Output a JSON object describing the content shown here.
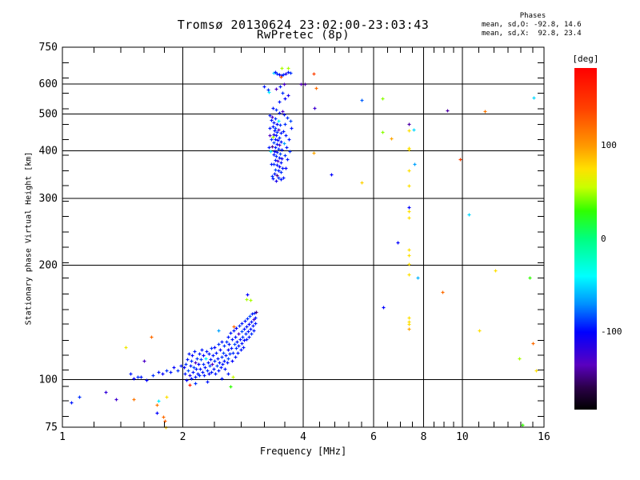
{
  "header": {
    "title": "Tromsø 20130624 23:02:00-23:03:43",
    "subtitle": "RwPretec (8p)",
    "phases": {
      "title": "Phases",
      "line_o": "mean, sd,O: -92.8, 14.6",
      "line_x": "mean, sd,X:  92.8, 23.4"
    }
  },
  "chart_data": {
    "type": "scatter",
    "title": "Tromsø 20130624 23:02:00-23:03:43",
    "subtitle": "RwPretec (8p)",
    "xlabel": "Frequency [MHz]",
    "ylabel": "Stationary phase Virtual Height [km]",
    "grid": true,
    "x_axis": {
      "scale": "log",
      "range": [
        1,
        16
      ],
      "major_ticks": [
        1,
        2,
        4,
        6,
        8,
        10,
        16
      ],
      "tick_labels": [
        "1",
        "2",
        "4",
        "6",
        "8",
        "10",
        "16"
      ],
      "grid_at": [
        2,
        4,
        6,
        8,
        10
      ],
      "minor_ticks": [
        1.2,
        1.4,
        1.6,
        1.8,
        2.4,
        2.8,
        3.2,
        3.6,
        4.4,
        4.8,
        5.2,
        5.6,
        6.5,
        7,
        7.5,
        8.5,
        9,
        9.5,
        11,
        12,
        13,
        14,
        15
      ]
    },
    "y_axis": {
      "scale": "log",
      "range": [
        75,
        750
      ],
      "major_ticks": [
        75,
        100,
        200,
        300,
        400,
        500,
        600,
        750
      ],
      "tick_labels": [
        "75",
        "100",
        "200",
        "300",
        "400",
        "500",
        "600",
        "750"
      ],
      "grid_at": [
        100,
        200,
        300,
        400,
        500,
        600
      ],
      "minor_ticks": [
        683,
        622,
        567,
        516,
        470,
        428,
        390,
        355,
        324,
        295,
        269,
        245,
        223,
        203,
        185,
        168,
        153,
        140,
        127,
        116,
        106,
        96,
        88,
        80
      ]
    },
    "colorbar": {
      "title": "[deg]",
      "units": "deg",
      "range": [
        -183,
        183
      ],
      "tick_values": [
        100,
        0,
        -100
      ],
      "tick_labels": [
        "100",
        "0",
        "-100"
      ],
      "stops": [
        [
          183,
          "#ff0000"
        ],
        [
          140,
          "#ff4000"
        ],
        [
          100,
          "#ff9800"
        ],
        [
          75,
          "#ffe000"
        ],
        [
          55,
          "#c8ff00"
        ],
        [
          30,
          "#30ff00"
        ],
        [
          0,
          "#00ff80"
        ],
        [
          -40,
          "#00ffff"
        ],
        [
          -70,
          "#0090ff"
        ],
        [
          -100,
          "#0000ff"
        ],
        [
          -135,
          "#5a00c0"
        ],
        [
          -160,
          "#2a0046"
        ],
        [
          -183,
          "#000000"
        ]
      ]
    },
    "series_label": "echoes [frequency MHz, virtual height km, phase deg]",
    "points": [
      [
        1.05,
        87,
        -95
      ],
      [
        1.1,
        90,
        -90
      ],
      [
        1.28,
        93,
        -120
      ],
      [
        1.36,
        89,
        -125
      ],
      [
        1.44,
        122,
        70
      ],
      [
        1.51,
        89,
        115
      ],
      [
        1.6,
        112,
        -130
      ],
      [
        1.67,
        130,
        120
      ],
      [
        1.72,
        86,
        115
      ],
      [
        1.72,
        82,
        -100
      ],
      [
        1.74,
        88,
        -45
      ],
      [
        1.79,
        80,
        120
      ],
      [
        1.8,
        78,
        125
      ],
      [
        1.81,
        75,
        80
      ],
      [
        1.82,
        90,
        75
      ],
      [
        1.48,
        104,
        -95
      ],
      [
        1.51,
        101,
        -100
      ],
      [
        1.54,
        102,
        -90
      ],
      [
        1.57,
        102,
        -95
      ],
      [
        1.62,
        100,
        -100
      ],
      [
        1.68,
        103,
        -90
      ],
      [
        1.74,
        105,
        -95
      ],
      [
        1.78,
        104,
        -100
      ],
      [
        1.82,
        106,
        -90
      ],
      [
        1.86,
        105,
        -95
      ],
      [
        1.9,
        108,
        -100
      ],
      [
        1.94,
        106,
        -90
      ],
      [
        1.98,
        109,
        -95
      ],
      [
        2.01,
        108,
        -100
      ],
      [
        2.02,
        104,
        -95
      ],
      [
        2.03,
        110,
        -90
      ],
      [
        2.04,
        100,
        -100
      ],
      [
        2.05,
        113,
        -95
      ],
      [
        2.06,
        106,
        -85
      ],
      [
        2.07,
        117,
        -95
      ],
      [
        2.08,
        103,
        -110
      ],
      [
        2.09,
        109,
        -95
      ],
      [
        2.1,
        112,
        -90
      ],
      [
        2.1,
        101,
        -95
      ],
      [
        2.11,
        116,
        -100
      ],
      [
        2.12,
        105,
        -95
      ],
      [
        2.13,
        108,
        -85
      ],
      [
        2.14,
        119,
        -95
      ],
      [
        2.15,
        102,
        -95
      ],
      [
        2.15,
        111,
        -130
      ],
      [
        2.16,
        107,
        -95
      ],
      [
        2.17,
        114,
        -90
      ],
      [
        2.18,
        104,
        -95
      ],
      [
        2.19,
        110,
        -100
      ],
      [
        2.2,
        117,
        -95
      ],
      [
        2.2,
        103,
        -90
      ],
      [
        2.21,
        107,
        -95
      ],
      [
        2.22,
        113,
        -85
      ],
      [
        2.23,
        120,
        -95
      ],
      [
        2.24,
        105,
        -95
      ],
      [
        2.25,
        110,
        -90
      ],
      [
        2.25,
        116,
        -100
      ],
      [
        2.26,
        103,
        -95
      ],
      [
        2.27,
        108,
        -95
      ],
      [
        2.28,
        114,
        -45
      ],
      [
        2.29,
        119,
        -95
      ],
      [
        2.3,
        106,
        -90
      ],
      [
        2.31,
        111,
        -95
      ],
      [
        2.32,
        104,
        -100
      ],
      [
        2.32,
        117,
        -95
      ],
      [
        2.33,
        109,
        -85
      ],
      [
        2.34,
        113,
        -95
      ],
      [
        2.35,
        121,
        -90
      ],
      [
        2.36,
        105,
        -95
      ],
      [
        2.37,
        110,
        -130
      ],
      [
        2.38,
        116,
        -95
      ],
      [
        2.39,
        107,
        -95
      ],
      [
        2.4,
        112,
        -90
      ],
      [
        2.4,
        122,
        -100
      ],
      [
        2.41,
        104,
        -95
      ],
      [
        2.42,
        118,
        -95
      ],
      [
        2.43,
        109,
        -85
      ],
      [
        2.44,
        114,
        -95
      ],
      [
        2.45,
        124,
        -90
      ],
      [
        2.46,
        106,
        -95
      ],
      [
        2.47,
        111,
        -95
      ],
      [
        2.48,
        120,
        -100
      ],
      [
        2.49,
        108,
        -95
      ],
      [
        2.5,
        115,
        -90
      ],
      [
        2.5,
        126,
        -95
      ],
      [
        2.51,
        110,
        -95
      ],
      [
        2.52,
        118,
        -85
      ],
      [
        2.53,
        112,
        -95
      ],
      [
        2.54,
        123,
        -90
      ],
      [
        2.55,
        107,
        -95
      ],
      [
        2.56,
        116,
        -95
      ],
      [
        2.57,
        126,
        -90
      ],
      [
        2.58,
        111,
        -95
      ],
      [
        2.59,
        120,
        -100
      ],
      [
        2.6,
        130,
        -95
      ],
      [
        2.6,
        114,
        -85
      ],
      [
        2.61,
        124,
        -95
      ],
      [
        2.62,
        117,
        -90
      ],
      [
        2.63,
        133,
        -95
      ],
      [
        2.64,
        121,
        -95
      ],
      [
        2.65,
        112,
        -100
      ],
      [
        2.66,
        128,
        -95
      ],
      [
        2.67,
        118,
        -90
      ],
      [
        2.68,
        135,
        -95
      ],
      [
        2.69,
        124,
        -85
      ],
      [
        2.7,
        115,
        -95
      ],
      [
        2.71,
        130,
        -95
      ],
      [
        2.72,
        121,
        -90
      ],
      [
        2.72,
        137,
        -100
      ],
      [
        2.73,
        126,
        -95
      ],
      [
        2.74,
        118,
        -95
      ],
      [
        2.75,
        132,
        -130
      ],
      [
        2.76,
        123,
        -95
      ],
      [
        2.77,
        139,
        -90
      ],
      [
        2.78,
        128,
        -95
      ],
      [
        2.79,
        120,
        -95
      ],
      [
        2.8,
        134,
        -85
      ],
      [
        2.8,
        125,
        -95
      ],
      [
        2.81,
        141,
        -95
      ],
      [
        2.82,
        130,
        -90
      ],
      [
        2.83,
        122,
        -95
      ],
      [
        2.84,
        136,
        -95
      ],
      [
        2.85,
        127,
        -100
      ],
      [
        2.86,
        143,
        -95
      ],
      [
        2.87,
        132,
        -90
      ],
      [
        2.88,
        138,
        -95
      ],
      [
        2.89,
        128,
        -95
      ],
      [
        2.9,
        145,
        -90
      ],
      [
        2.91,
        134,
        -95
      ],
      [
        2.92,
        140,
        -100
      ],
      [
        2.93,
        130,
        -95
      ],
      [
        2.94,
        147,
        -85
      ],
      [
        2.95,
        136,
        -95
      ],
      [
        2.96,
        142,
        -95
      ],
      [
        2.97,
        132,
        -90
      ],
      [
        2.98,
        149,
        -95
      ],
      [
        2.99,
        139,
        -95
      ],
      [
        3.0,
        144,
        -130
      ],
      [
        3.01,
        135,
        -95
      ],
      [
        3.02,
        150,
        -90
      ],
      [
        3.03,
        141,
        -95
      ],
      [
        3.04,
        146,
        -95
      ],
      [
        3.05,
        151,
        -145
      ],
      [
        2.68,
        138,
        120
      ],
      [
        2.08,
        97,
        165
      ],
      [
        2.63,
        96,
        30
      ],
      [
        2.67,
        102,
        55
      ],
      [
        2.88,
        163,
        50
      ],
      [
        2.95,
        162,
        50
      ],
      [
        2.9,
        168,
        -100
      ],
      [
        2.45,
        135,
        -65
      ],
      [
        2.3,
        99,
        -95
      ],
      [
        2.5,
        101,
        -95
      ],
      [
        2.15,
        98,
        -90
      ],
      [
        2.6,
        104,
        -95
      ],
      [
        3.37,
        642,
        -50
      ],
      [
        3.4,
        645,
        -95
      ],
      [
        3.44,
        639,
        -90
      ],
      [
        3.48,
        636,
        -100
      ],
      [
        3.53,
        633,
        -95
      ],
      [
        3.57,
        636,
        -90
      ],
      [
        3.62,
        639,
        -110
      ],
      [
        3.67,
        645,
        -95
      ],
      [
        3.71,
        642,
        -90
      ],
      [
        3.53,
        660,
        50
      ],
      [
        3.66,
        662,
        50
      ],
      [
        3.51,
        627,
        130
      ],
      [
        3.19,
        590,
        -95
      ],
      [
        3.26,
        581,
        -90
      ],
      [
        3.28,
        572,
        -45
      ],
      [
        3.42,
        584,
        -130
      ],
      [
        3.5,
        590,
        -95
      ],
      [
        3.55,
        570,
        -90
      ],
      [
        3.6,
        550,
        -100
      ],
      [
        3.48,
        540,
        -95
      ],
      [
        3.66,
        560,
        -110
      ],
      [
        3.58,
        600,
        -130
      ],
      [
        3.95,
        600,
        -135
      ],
      [
        4.04,
        600,
        -140
      ],
      [
        3.3,
        497,
        -95
      ],
      [
        3.35,
        492,
        -130
      ],
      [
        3.4,
        488,
        -90
      ],
      [
        3.33,
        483,
        -95
      ],
      [
        3.46,
        480,
        -45
      ],
      [
        3.38,
        476,
        -95
      ],
      [
        3.43,
        472,
        -100
      ],
      [
        3.5,
        468,
        -90
      ],
      [
        3.36,
        464,
        -95
      ],
      [
        3.41,
        460,
        -85
      ],
      [
        3.47,
        456,
        -130
      ],
      [
        3.39,
        452,
        -95
      ],
      [
        3.44,
        449,
        -90
      ],
      [
        3.52,
        446,
        -95
      ],
      [
        3.37,
        443,
        -110
      ],
      [
        3.42,
        440,
        -95
      ],
      [
        3.36,
        436,
        50
      ],
      [
        3.48,
        433,
        -90
      ],
      [
        3.4,
        430,
        -95
      ],
      [
        3.45,
        427,
        -100
      ],
      [
        3.51,
        424,
        -95
      ],
      [
        3.38,
        421,
        -85
      ],
      [
        3.43,
        418,
        -95
      ],
      [
        3.49,
        415,
        -130
      ],
      [
        3.35,
        412,
        -145
      ],
      [
        3.41,
        409,
        -95
      ],
      [
        3.46,
        406,
        -90
      ],
      [
        3.53,
        403,
        -95
      ],
      [
        3.39,
        400,
        -100
      ],
      [
        3.44,
        397,
        -95
      ],
      [
        3.5,
        394,
        -85
      ],
      [
        3.37,
        391,
        -95
      ],
      [
        3.42,
        388,
        -90
      ],
      [
        3.48,
        385,
        -95
      ],
      [
        3.54,
        382,
        -110
      ],
      [
        3.4,
        379,
        -95
      ],
      [
        3.45,
        376,
        -130
      ],
      [
        3.51,
        373,
        -95
      ],
      [
        3.38,
        370,
        -90
      ],
      [
        3.43,
        367,
        -95
      ],
      [
        3.49,
        364,
        -100
      ],
      [
        3.55,
        361,
        -95
      ],
      [
        3.41,
        358,
        -85
      ],
      [
        3.46,
        355,
        -95
      ],
      [
        3.52,
        352,
        -90
      ],
      [
        3.39,
        349,
        -95
      ],
      [
        3.44,
        346,
        -145
      ],
      [
        3.57,
        450,
        -95
      ],
      [
        3.6,
        470,
        -90
      ],
      [
        3.62,
        440,
        -95
      ],
      [
        3.58,
        420,
        -65
      ],
      [
        3.63,
        410,
        -95
      ],
      [
        3.59,
        390,
        -90
      ],
      [
        3.64,
        380,
        -95
      ],
      [
        3.61,
        360,
        -100
      ],
      [
        3.56,
        340,
        -95
      ],
      [
        3.47,
        340,
        -90
      ],
      [
        3.52,
        337,
        -95
      ],
      [
        3.42,
        334,
        -110
      ],
      [
        3.36,
        338,
        -95
      ],
      [
        3.58,
        500,
        -95
      ],
      [
        3.64,
        490,
        -90
      ],
      [
        3.55,
        510,
        -130
      ],
      [
        3.48,
        505,
        -95
      ],
      [
        3.42,
        515,
        -90
      ],
      [
        3.36,
        520,
        -95
      ],
      [
        3.3,
        460,
        -95
      ],
      [
        3.32,
        430,
        -90
      ],
      [
        3.31,
        400,
        -45
      ],
      [
        3.33,
        370,
        -95
      ],
      [
        3.34,
        344,
        -90
      ],
      [
        3.28,
        410,
        -95
      ],
      [
        3.29,
        440,
        -130
      ],
      [
        3.68,
        430,
        -95
      ],
      [
        3.7,
        400,
        -90
      ],
      [
        3.74,
        460,
        -95
      ],
      [
        3.72,
        480,
        -85
      ],
      [
        4.25,
        640,
        140
      ],
      [
        4.3,
        585,
        120
      ],
      [
        4.26,
        520,
        -125
      ],
      [
        4.24,
        395,
        95
      ],
      [
        4.7,
        347,
        -100
      ],
      [
        5.6,
        545,
        -80
      ],
      [
        5.6,
        330,
        80
      ],
      [
        6.3,
        550,
        45
      ],
      [
        6.3,
        448,
        45
      ],
      [
        6.65,
        432,
        95
      ],
      [
        6.35,
        155,
        -100
      ],
      [
        6.9,
        230,
        -100
      ],
      [
        7.73,
        186,
        -60
      ],
      [
        7.6,
        370,
        -65
      ],
      [
        8.9,
        170,
        120
      ],
      [
        9.16,
        512,
        -140
      ],
      [
        9.85,
        381,
        140
      ],
      [
        10.4,
        272,
        -50
      ],
      [
        11.4,
        510,
        115
      ],
      [
        12.1,
        194,
        75
      ],
      [
        14.7,
        186,
        30
      ],
      [
        15.0,
        125,
        120
      ],
      [
        13.9,
        114,
        50
      ],
      [
        15.3,
        106,
        75
      ],
      [
        14.1,
        76,
        30
      ],
      [
        15.1,
        553,
        -50
      ],
      [
        11.0,
        135,
        75
      ],
      [
        7.35,
        470,
        -140
      ],
      [
        7.35,
        453,
        75
      ],
      [
        7.55,
        456,
        -50
      ],
      [
        7.35,
        408,
        75
      ],
      [
        7.35,
        403,
        75
      ],
      [
        7.35,
        355,
        75
      ],
      [
        7.35,
        325,
        75
      ],
      [
        7.35,
        285,
        -100
      ],
      [
        7.35,
        278,
        75
      ],
      [
        7.35,
        267,
        75
      ],
      [
        7.35,
        220,
        75
      ],
      [
        7.35,
        213,
        75
      ],
      [
        7.35,
        202,
        75
      ],
      [
        7.35,
        189,
        75
      ],
      [
        7.35,
        146,
        75
      ],
      [
        7.35,
        142,
        75
      ],
      [
        7.35,
        140,
        75
      ],
      [
        7.35,
        136,
        95
      ]
    ]
  }
}
